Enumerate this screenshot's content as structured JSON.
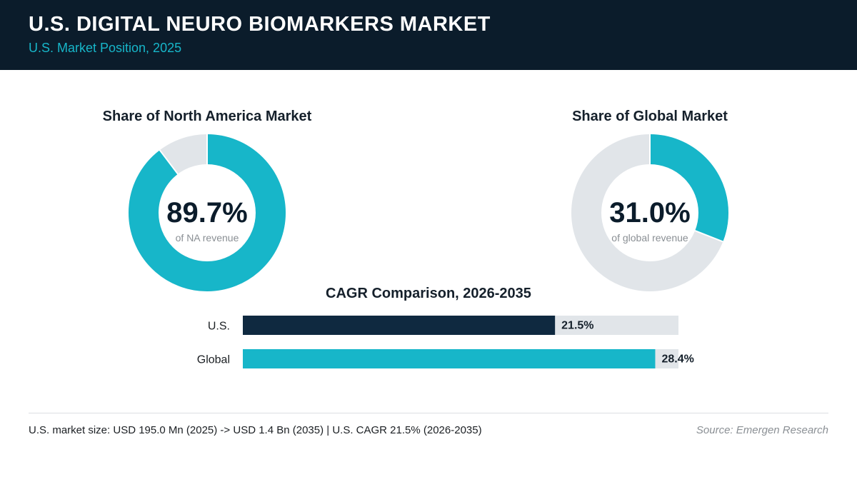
{
  "header": {
    "title": "U.S. DIGITAL NEURO BIOMARKERS MARKET",
    "subtitle": "U.S. Market Position, 2025"
  },
  "colors": {
    "header_bg": "#0b1c2b",
    "accent": "#17b6c9",
    "navy": "#0f2940",
    "track": "#e1e5e9"
  },
  "chart_data": [
    {
      "type": "pie",
      "title": "Share of North America Market",
      "value_label": "89.7%",
      "caption": "of NA revenue",
      "values": [
        89.7,
        10.3
      ]
    },
    {
      "type": "pie",
      "title": "Share of Global Market",
      "value_label": "31.0%",
      "caption": "of global revenue",
      "values": [
        31.0,
        69.0
      ]
    },
    {
      "type": "bar",
      "title": "CAGR Comparison, 2026-2035",
      "categories": [
        "U.S.",
        "Global"
      ],
      "values": [
        21.5,
        28.4
      ],
      "value_labels": [
        "21.5%",
        "28.4%"
      ],
      "xlim": [
        0,
        30
      ]
    }
  ],
  "footer": {
    "summary": "U.S. market size: USD 195.0 Mn (2025) -> USD 1.4 Bn (2035)  |  U.S. CAGR 21.5% (2026-2035)",
    "source": "Source: Emergen Research"
  }
}
